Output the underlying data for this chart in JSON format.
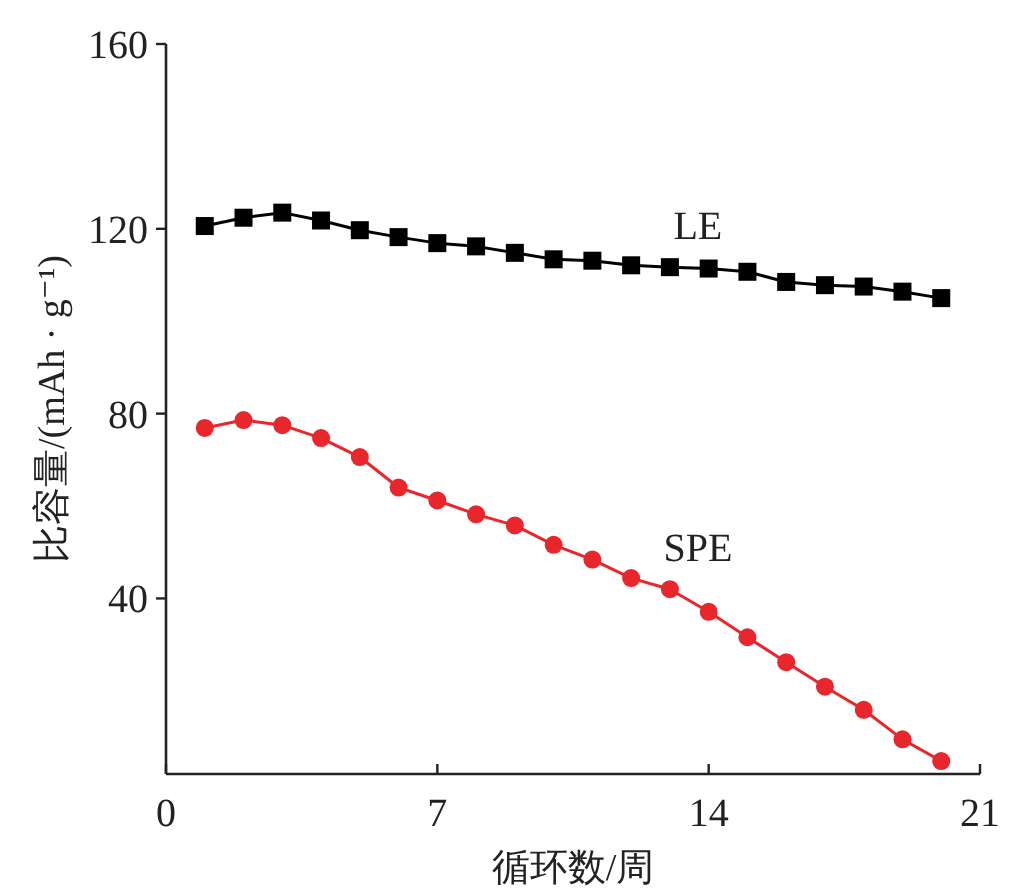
{
  "chart_data": {
    "type": "line",
    "xlabel": "循环数/周",
    "ylabel": "比容量/(mAh · g⁻¹)",
    "x": [
      1,
      2,
      3,
      4,
      5,
      6,
      7,
      8,
      9,
      10,
      11,
      12,
      13,
      14,
      15,
      16,
      17,
      18,
      19,
      20
    ],
    "series": [
      {
        "name": "LE",
        "color": "#000000",
        "marker": "square",
        "values": [
          120.6,
          122.4,
          123.5,
          121.8,
          119.7,
          118.2,
          116.9,
          116.2,
          114.8,
          113.4,
          113.1,
          112.1,
          111.7,
          111.4,
          110.7,
          108.5,
          107.8,
          107.5,
          106.4,
          105.0
        ]
      },
      {
        "name": "SPE",
        "color": "#e8262b",
        "marker": "circle",
        "values": [
          76.9,
          78.6,
          77.5,
          74.7,
          70.6,
          64.0,
          61.2,
          58.2,
          55.8,
          51.6,
          48.4,
          44.4,
          42.0,
          37.1,
          31.6,
          26.2,
          20.9,
          15.9,
          9.5,
          4.8
        ]
      }
    ],
    "xlim": [
      0,
      21
    ],
    "xticks": [
      0,
      7,
      14,
      21
    ],
    "ylim": [
      2,
      160
    ],
    "yticks": [
      40,
      80,
      120,
      160
    ],
    "grid": false
  }
}
